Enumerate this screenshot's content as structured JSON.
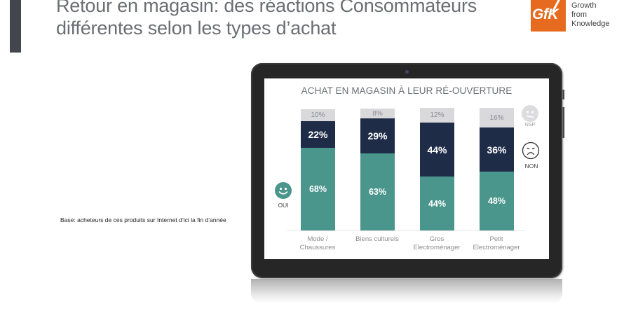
{
  "header": {
    "title_line1": "Retour en magasin: des réactions Consommateurs",
    "title_line2": "différentes selon les types d’achat"
  },
  "logo": {
    "mark": "GfK",
    "tagline": [
      "Growth",
      "from",
      "Knowledge"
    ],
    "color": "#e66b1e"
  },
  "base_note": "Base: acheteurs de ces produits sur Internet d’ici la fin d’année",
  "colors": {
    "oui": "#4a958c",
    "non": "#1f2c48",
    "nsp": "#d9d9db"
  },
  "legend": {
    "oui": {
      "label": "OUI",
      "icon": "happy-face-icon"
    },
    "non": {
      "label": "NON",
      "icon": "sad-face-icon"
    },
    "nsp": {
      "label": "NSP",
      "icon": "neutral-face-icon"
    }
  },
  "chart_data": {
    "type": "bar",
    "stacked": true,
    "title": "ACHAT EN MAGASIN À LEUR RÉ-OUVERTURE",
    "categories": [
      "Mode / Chaussures",
      "Biens culturels",
      "Gros Electroménager",
      "Petit Electroménager"
    ],
    "category_lines": [
      [
        "Mode /",
        "Chaussures"
      ],
      [
        "Biens culturels",
        ""
      ],
      [
        "Gros",
        "Electroménager"
      ],
      [
        "Petit",
        "Electroménager"
      ]
    ],
    "series": [
      {
        "name": "OUI",
        "values": [
          68,
          63,
          44,
          48
        ],
        "labels": [
          "68%",
          "63%",
          "44%",
          "48%"
        ]
      },
      {
        "name": "NON",
        "values": [
          22,
          29,
          44,
          36
        ],
        "labels": [
          "22%",
          "29%",
          "44%",
          "36%"
        ]
      },
      {
        "name": "NSP",
        "values": [
          10,
          8,
          12,
          16
        ],
        "labels": [
          "10%",
          "8%",
          "12%",
          "16%"
        ]
      }
    ],
    "xlabel": "",
    "ylabel": "",
    "ylim": [
      0,
      100
    ],
    "grid": false,
    "legend_position": "right (NSP, NON) and left (OUI)"
  }
}
